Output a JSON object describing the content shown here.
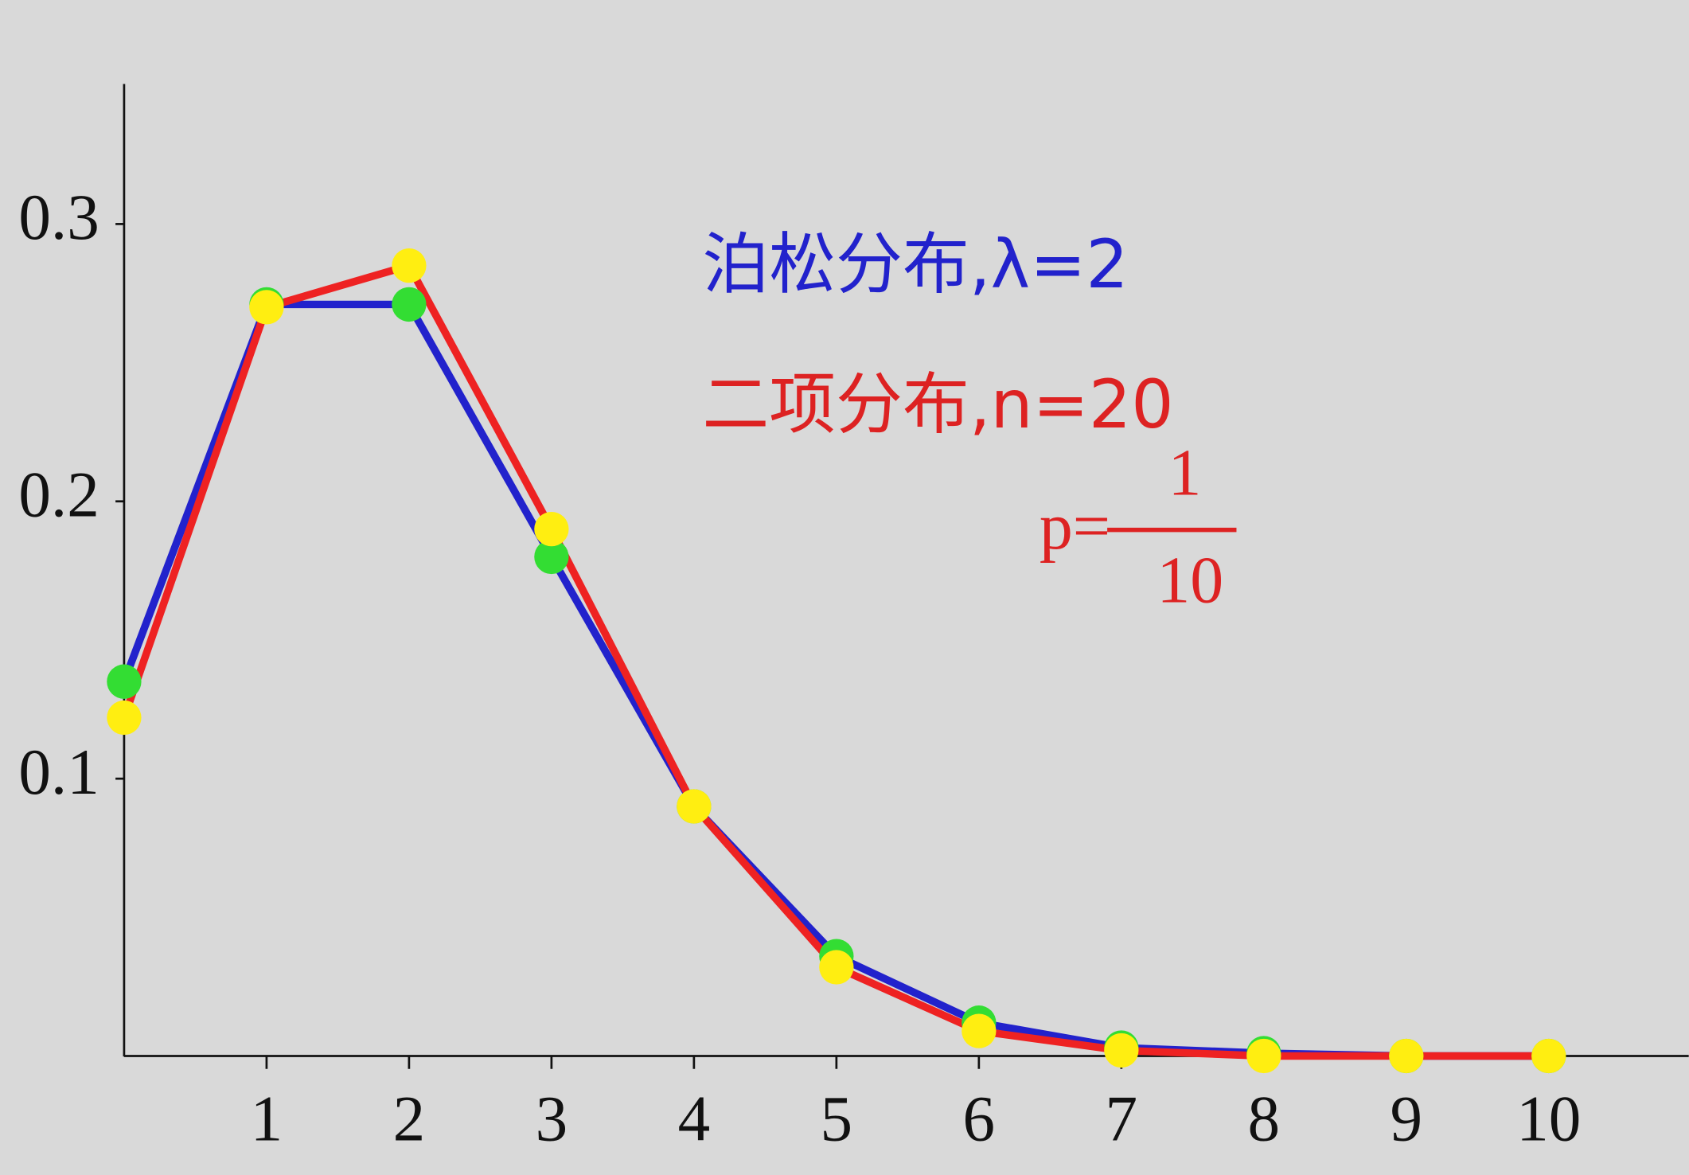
{
  "chart_data": {
    "type": "line",
    "x": [
      0,
      1,
      2,
      3,
      4,
      5,
      6,
      7,
      8,
      9,
      10
    ],
    "series": [
      {
        "color": "#2222cc",
        "marker_color": "#33dd33",
        "values": [
          0.135,
          0.271,
          0.271,
          0.18,
          0.09,
          0.036,
          0.012,
          0.003,
          0.001,
          0.0,
          0.0
        ]
      },
      {
        "color": "#ee2222",
        "marker_color": "#ffee11",
        "values": [
          0.122,
          0.27,
          0.285,
          0.19,
          0.09,
          0.032,
          0.009,
          0.002,
          0.0,
          0.0,
          0.0
        ]
      }
    ],
    "xlim": [
      0,
      11
    ],
    "xticks": [
      1,
      2,
      3,
      4,
      5,
      6,
      7,
      8,
      9,
      10
    ],
    "ylim": [
      0,
      0.35
    ],
    "yticks": [
      0.1,
      0.2,
      0.3
    ],
    "annotations": [
      {
        "text": "泊松分布,λ=2",
        "color": "#2222cc"
      },
      {
        "text": "二项分布,n=20",
        "color": "#dd2222"
      },
      {
        "text": "p=",
        "numerator": "1",
        "denominator": "10",
        "color": "#dd2222"
      }
    ]
  }
}
